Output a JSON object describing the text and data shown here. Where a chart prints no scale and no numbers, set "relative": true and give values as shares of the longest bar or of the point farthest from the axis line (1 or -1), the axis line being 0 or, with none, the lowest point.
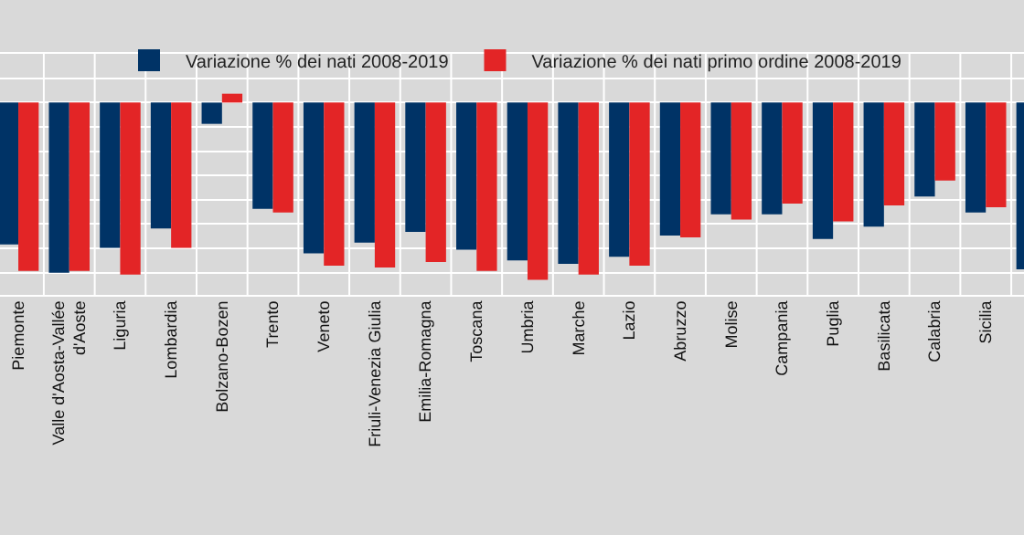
{
  "chart_data": {
    "type": "bar",
    "relative": true,
    "grid": true,
    "legend": "top",
    "categories": [
      "Piemonte",
      "Valle d'Aosta-Vallée d'Aoste",
      "Liguria",
      "Lombardia",
      "Bolzano-Bozen",
      "Trento",
      "Veneto",
      "Friuli-Venezia Giulia",
      "Emilia-Romagna",
      "Toscana",
      "Umbria",
      "Marche",
      "Lazio",
      "Abruzzo",
      "Molise",
      "Campania",
      "Puglia",
      "Basilicata",
      "Calabria",
      "Sicilia",
      null
    ],
    "series": [
      {
        "name": "Variazione % dei nati 2008-2019",
        "color": "#003366",
        "values": [
          -0.8,
          -0.96,
          -0.82,
          -0.71,
          -0.12,
          -0.6,
          -0.85,
          -0.79,
          -0.73,
          -0.83,
          -0.89,
          -0.91,
          -0.87,
          -0.75,
          -0.63,
          -0.63,
          -0.77,
          -0.7,
          -0.53,
          -0.62,
          -0.94
        ]
      },
      {
        "name": "Variazione % dei nati primo ordine 2008-2019",
        "color": "#e32526",
        "values": [
          -0.95,
          -0.95,
          -0.97,
          -0.82,
          0.05,
          -0.62,
          -0.92,
          -0.93,
          -0.9,
          -0.95,
          -1,
          -0.97,
          -0.92,
          -0.76,
          -0.66,
          -0.57,
          -0.67,
          -0.58,
          -0.44,
          -0.59,
          null
        ]
      }
    ]
  }
}
